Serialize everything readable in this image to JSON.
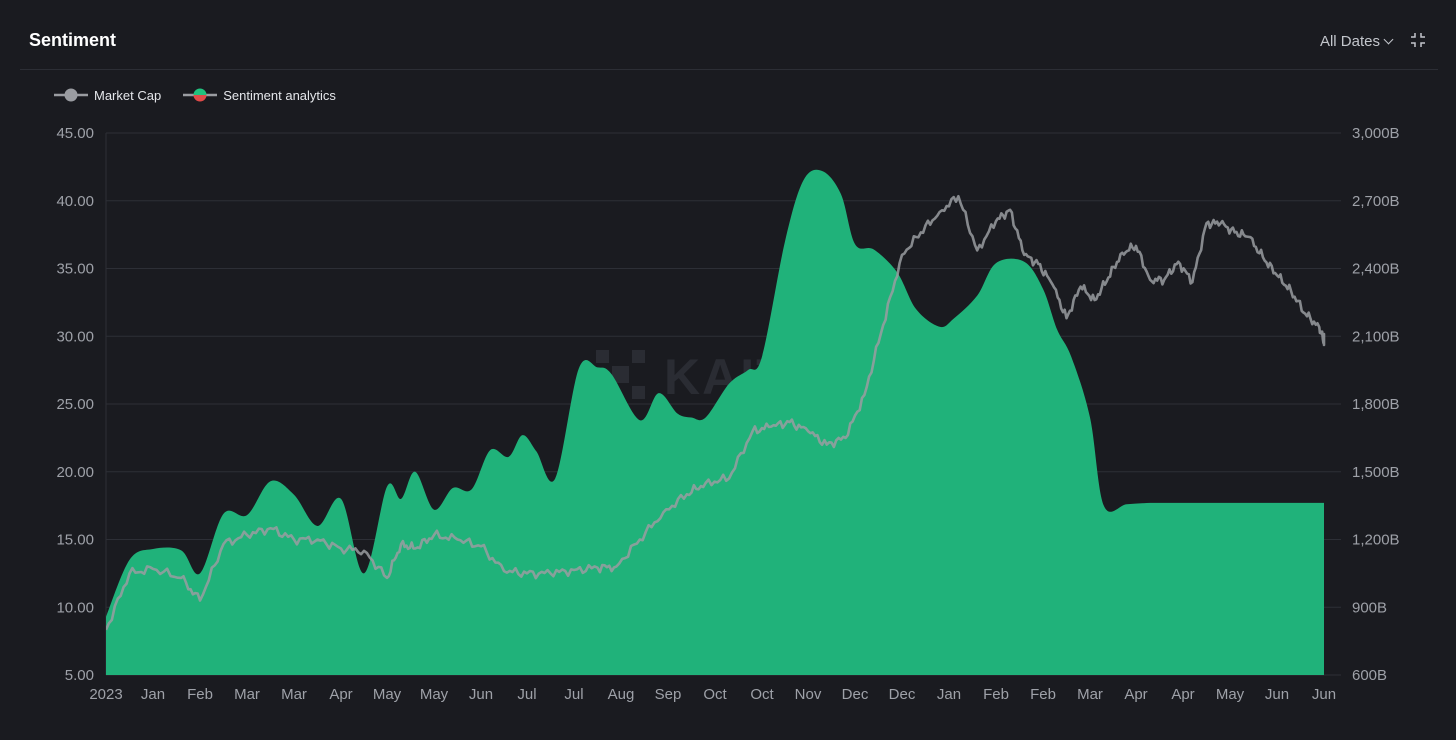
{
  "header": {
    "title": "Sentiment",
    "date_filter_label": "All Dates"
  },
  "legend": [
    {
      "name": "Market Cap",
      "color": "#9a9ca1"
    },
    {
      "name": "Sentiment analytics",
      "color_positive": "#21c17e",
      "color_negative": "#e04a48"
    }
  ],
  "watermark": "KAITO",
  "colors": {
    "area": "#20b27a",
    "market_cap_line": "#9a9ca1",
    "background": "#1a1b20"
  },
  "chart_data": {
    "type": "area",
    "x_tick_labels": [
      "2023",
      "Jan",
      "Feb",
      "Mar",
      "Mar",
      "Apr",
      "May",
      "May",
      "Jun",
      "Jul",
      "Jul",
      "Aug",
      "Sep",
      "Oct",
      "Oct",
      "Nov",
      "Dec",
      "Dec",
      "Jan",
      "Feb",
      "Feb",
      "Mar",
      "Apr",
      "Apr",
      "May",
      "Jun",
      "Jun"
    ],
    "y_left": {
      "ticks": [
        "45.00",
        "40.00",
        "35.00",
        "30.00",
        "25.00",
        "20.00",
        "15.00",
        "10.00",
        "5.00"
      ],
      "min": 5,
      "max": 45
    },
    "y_right": {
      "ticks": [
        "3,000B",
        "2,700B",
        "2,400B",
        "2,100B",
        "1,800B",
        "1,500B",
        "1,200B",
        "900B",
        "600B"
      ],
      "min": 600,
      "max": 3000
    },
    "grid": "horizontal",
    "legend_position": "top-left",
    "series": [
      {
        "name": "Sentiment analytics",
        "axis": "left",
        "x_index": [
          0,
          0.5,
          1,
          1.6,
          2,
          2.5,
          3,
          3.5,
          4,
          4.5,
          5,
          5.5,
          6,
          6.3,
          6.6,
          7,
          7.4,
          7.8,
          8.2,
          8.6,
          8.9,
          9.2,
          9.6,
          10.1,
          10.5,
          10.8,
          11.4,
          11.8,
          12.2,
          12.5,
          12.8,
          13.3,
          13.7,
          14.0,
          14.5,
          14.9,
          15.3,
          15.7,
          16.0,
          16.4,
          16.9,
          17.3,
          17.8,
          18.1,
          18.6,
          19.0,
          19.6,
          20.0,
          20.3,
          20.6,
          21.0,
          21.3,
          21.8,
          22.3,
          22.8,
          23.2,
          23.6,
          24.0,
          24.4,
          24.8,
          25.2,
          25.6,
          26.0,
          26.3,
          26.5
        ],
        "values": [
          9.3,
          13.5,
          14.3,
          14.2,
          12.5,
          16.9,
          16.8,
          19.3,
          18.3,
          16.0,
          18.0,
          12.5,
          18.9,
          18.0,
          20.0,
          17.2,
          18.8,
          18.7,
          21.6,
          21.1,
          22.7,
          21.5,
          19.5,
          27.6,
          27.7,
          27.2,
          23.8,
          25.8,
          24.3,
          24.0,
          24.0,
          26.5,
          27.5,
          28.5,
          37.0,
          41.5,
          42.2,
          40.5,
          36.8,
          36.4,
          34.7,
          32.0,
          30.7,
          31.3,
          33.0,
          35.4,
          35.5,
          33.5,
          30.5,
          28.5,
          24.0,
          17.5,
          17.6,
          17.7,
          17.7,
          17.7,
          17.7,
          17.7,
          17.7,
          17.7,
          17.7,
          17.7,
          17.7,
          17.7,
          17.7
        ]
      },
      {
        "name": "Market Cap",
        "axis": "right",
        "x_index": [
          0,
          0.5,
          1,
          1.6,
          2,
          2.5,
          3,
          3.5,
          4,
          4.5,
          5,
          5.5,
          6,
          6.3,
          6.6,
          7,
          7.5,
          8,
          8.5,
          9,
          9.5,
          10,
          10.5,
          10.9,
          11.4,
          11.9,
          12.4,
          12.8,
          13.3,
          13.8,
          14.2,
          14.6,
          15.0,
          15.4,
          15.8,
          16.2,
          16.6,
          17.0,
          17.4,
          17.8,
          18.2,
          18.6,
          19.0,
          19.3,
          19.6,
          19.9,
          20.2,
          20.5,
          20.8,
          21.1,
          21.4,
          21.7,
          22.0,
          22.3,
          22.6,
          22.9,
          23.2,
          23.5,
          23.8,
          24.1,
          24.4,
          24.7,
          25.0,
          25.3,
          25.6,
          25.9,
          26.2,
          26.4,
          26.5
        ],
        "values": [
          800,
          1050,
          1070,
          1030,
          930,
          1180,
          1220,
          1250,
          1200,
          1200,
          1160,
          1150,
          1030,
          1180,
          1160,
          1220,
          1200,
          1170,
          1060,
          1050,
          1050,
          1065,
          1075,
          1080,
          1200,
          1320,
          1400,
          1450,
          1470,
          1680,
          1700,
          1720,
          1680,
          1620,
          1650,
          1840,
          2150,
          2460,
          2560,
          2650,
          2720,
          2480,
          2610,
          2660,
          2460,
          2420,
          2330,
          2180,
          2320,
          2260,
          2360,
          2470,
          2500,
          2350,
          2350,
          2430,
          2340,
          2600,
          2600,
          2560,
          2540,
          2450,
          2370,
          2300,
          2200,
          2140,
          2080,
          2110,
          2080
        ]
      }
    ]
  }
}
